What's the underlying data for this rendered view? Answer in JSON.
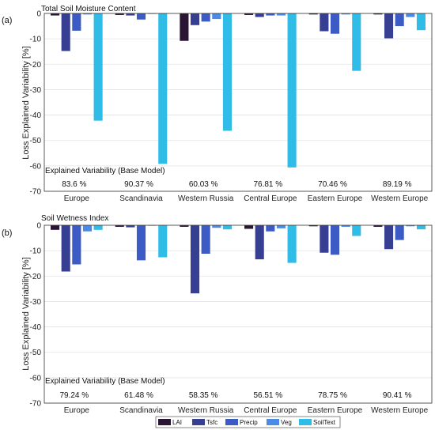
{
  "legend": {
    "entries": [
      "LAI",
      "Tsfc",
      "Precip",
      "Veg",
      "SoilText"
    ]
  },
  "colors": {
    "LAI": "#2a1634",
    "Tsfc": "#373f93",
    "Precip": "#3c5bc4",
    "Veg": "#4a8be8",
    "SoilText": "#2fbce6"
  },
  "chart_data": [
    {
      "type": "bar",
      "panel_label": "(a)",
      "title": "Total Soil Moisture Content",
      "ylabel": "Loss Explained Variability [%]",
      "ylim": [
        -70,
        0
      ],
      "yticks": [
        0,
        -10,
        -20,
        -30,
        -40,
        -50,
        -60,
        -70
      ],
      "grid": true,
      "categories": [
        "Europe",
        "Scandinavia",
        "Western Russia",
        "Central Europe",
        "Eastern Europe",
        "Western Europe"
      ],
      "series": [
        {
          "name": "LAI",
          "values": [
            -0.8,
            -0.6,
            -10.8,
            -0.6,
            -0.4,
            -0.4
          ]
        },
        {
          "name": "Tsfc",
          "values": [
            -14.8,
            -0.8,
            -4.6,
            -1.4,
            -7.0,
            -9.8
          ]
        },
        {
          "name": "Precip",
          "values": [
            -6.8,
            -2.4,
            -3.2,
            -0.8,
            -8.0,
            -5.0
          ]
        },
        {
          "name": "Veg",
          "values": [
            -0.4,
            -0.2,
            -2.2,
            -0.8,
            -0.4,
            -1.4
          ]
        },
        {
          "name": "SoilText",
          "values": [
            -42.2,
            -59.2,
            -46.2,
            -60.6,
            -22.6,
            -6.6
          ]
        }
      ],
      "explained_variability_title": "Explained Variability (Base Model)",
      "explained_variability": [
        "83.6 %",
        "90.37 %",
        "60.03 %",
        "76.81 %",
        "70.46 %",
        "89.19 %"
      ]
    },
    {
      "type": "bar",
      "panel_label": "(b)",
      "title": "Soil Wetness Index",
      "ylabel": "Loss Explained Variability [%]",
      "ylim": [
        -70,
        0
      ],
      "yticks": [
        0,
        -10,
        -20,
        -30,
        -40,
        -50,
        -60,
        -70
      ],
      "grid": true,
      "categories": [
        "Europe",
        "Scandinavia",
        "Western Russia",
        "Central Europe",
        "Eastern Europe",
        "Western Europe"
      ],
      "series": [
        {
          "name": "LAI",
          "values": [
            -1.8,
            -0.6,
            -0.6,
            -1.4,
            -0.4,
            -0.6
          ]
        },
        {
          "name": "Tsfc",
          "values": [
            -18.2,
            -0.8,
            -26.8,
            -13.4,
            -10.8,
            -9.4
          ]
        },
        {
          "name": "Precip",
          "values": [
            -15.4,
            -13.8,
            -11.2,
            -2.4,
            -11.6,
            -5.8
          ]
        },
        {
          "name": "Veg",
          "values": [
            -2.4,
            -0.2,
            -1.0,
            -1.2,
            -0.6,
            -0.4
          ]
        },
        {
          "name": "SoilText",
          "values": [
            -1.8,
            -12.6,
            -1.6,
            -14.8,
            -4.2,
            -1.6
          ]
        }
      ],
      "explained_variability_title": "Explained Variability (Base Model)",
      "explained_variability": [
        "79.24 %",
        "61.48 %",
        "58.35 %",
        "56.51 %",
        "78.75 %",
        "90.41 %"
      ]
    }
  ]
}
